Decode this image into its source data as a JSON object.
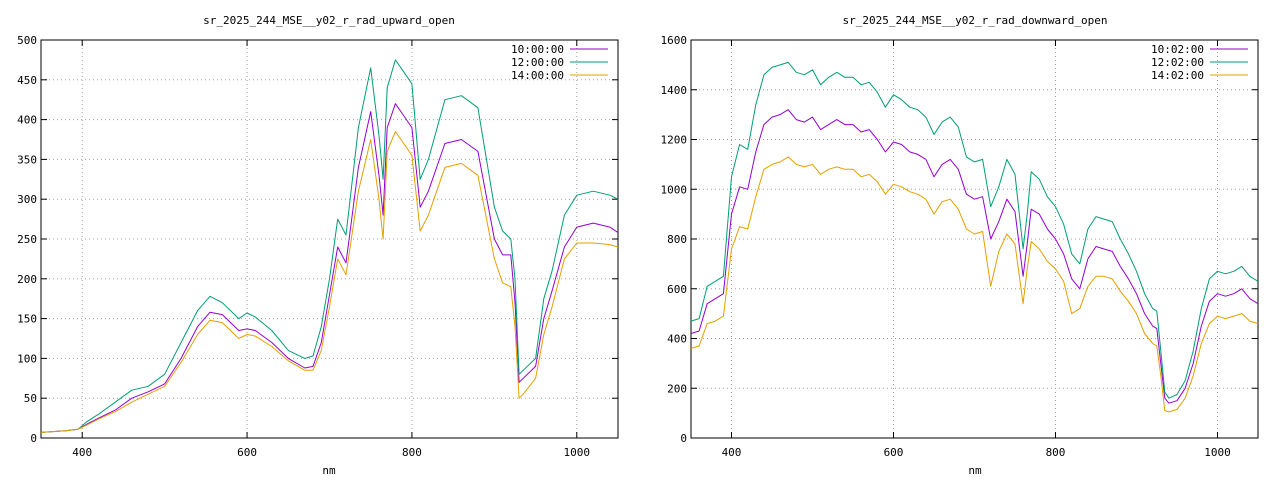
{
  "chart_data": [
    {
      "type": "line",
      "title": "sr_2025_244_MSE__y02_r_rad_upward_open",
      "xlabel": "nm",
      "ylabel": "",
      "xlim": [
        350,
        1050
      ],
      "ylim": [
        0,
        500
      ],
      "xticks": [
        400,
        600,
        800,
        1000
      ],
      "yticks": [
        0,
        50,
        100,
        150,
        200,
        250,
        300,
        350,
        400,
        450,
        500
      ],
      "grid": true,
      "legend_position": "top-right",
      "x": [
        350,
        380,
        395,
        405,
        420,
        440,
        460,
        480,
        500,
        520,
        540,
        555,
        570,
        590,
        600,
        610,
        630,
        650,
        670,
        680,
        690,
        700,
        710,
        720,
        735,
        750,
        760,
        765,
        770,
        780,
        790,
        800,
        810,
        820,
        840,
        860,
        880,
        900,
        910,
        920,
        925,
        930,
        935,
        950,
        960,
        970,
        985,
        1000,
        1020,
        1040,
        1050
      ],
      "series": [
        {
          "name": "10:00:00",
          "color": "#9400d3",
          "values": [
            7,
            9,
            11,
            17,
            25,
            35,
            50,
            58,
            68,
            100,
            140,
            158,
            155,
            135,
            137,
            135,
            120,
            100,
            88,
            90,
            120,
            180,
            240,
            220,
            340,
            410,
            330,
            280,
            390,
            420,
            405,
            390,
            290,
            310,
            370,
            375,
            360,
            250,
            230,
            230,
            170,
            70,
            75,
            90,
            150,
            185,
            240,
            265,
            270,
            265,
            258
          ]
        },
        {
          "name": "12:00:00",
          "color": "#009e73",
          "values": [
            7,
            9,
            11,
            20,
            30,
            45,
            60,
            65,
            80,
            120,
            160,
            178,
            170,
            150,
            157,
            152,
            135,
            110,
            100,
            103,
            140,
            200,
            275,
            255,
            390,
            465,
            380,
            325,
            440,
            475,
            460,
            445,
            325,
            350,
            425,
            430,
            415,
            290,
            260,
            250,
            200,
            80,
            85,
            100,
            175,
            210,
            280,
            305,
            310,
            305,
            300
          ]
        },
        {
          "name": "14:00:00",
          "color": "#e69f00",
          "values": [
            7,
            9,
            11,
            16,
            24,
            33,
            45,
            55,
            65,
            95,
            130,
            148,
            145,
            125,
            130,
            128,
            115,
            97,
            85,
            85,
            110,
            165,
            225,
            205,
            310,
            375,
            300,
            250,
            360,
            385,
            370,
            355,
            260,
            280,
            340,
            345,
            330,
            225,
            195,
            190,
            140,
            50,
            55,
            75,
            130,
            165,
            225,
            245,
            245,
            243,
            240
          ]
        }
      ]
    },
    {
      "type": "line",
      "title": "sr_2025_244_MSE__y02_r_rad_downward_open",
      "xlabel": "nm",
      "ylabel": "",
      "xlim": [
        350,
        1050
      ],
      "ylim": [
        0,
        1600
      ],
      "xticks": [
        400,
        600,
        800,
        1000
      ],
      "yticks": [
        0,
        200,
        400,
        600,
        800,
        1000,
        1200,
        1400,
        1600
      ],
      "grid": true,
      "legend_position": "top-right",
      "x": [
        350,
        360,
        370,
        380,
        390,
        400,
        410,
        420,
        430,
        440,
        450,
        460,
        470,
        480,
        490,
        500,
        510,
        520,
        530,
        540,
        550,
        560,
        570,
        580,
        590,
        600,
        610,
        620,
        630,
        640,
        650,
        660,
        670,
        680,
        690,
        700,
        710,
        720,
        730,
        740,
        750,
        760,
        765,
        770,
        780,
        790,
        800,
        810,
        820,
        830,
        840,
        850,
        860,
        870,
        880,
        890,
        900,
        910,
        920,
        925,
        930,
        935,
        940,
        950,
        960,
        970,
        980,
        990,
        1000,
        1010,
        1020,
        1030,
        1040,
        1050
      ],
      "series": [
        {
          "name": "10:02:00",
          "color": "#9400d3",
          "values": [
            420,
            430,
            540,
            560,
            580,
            900,
            1010,
            1000,
            1150,
            1260,
            1290,
            1300,
            1320,
            1280,
            1270,
            1290,
            1240,
            1260,
            1280,
            1260,
            1260,
            1230,
            1240,
            1200,
            1150,
            1190,
            1180,
            1150,
            1140,
            1120,
            1050,
            1100,
            1120,
            1080,
            980,
            960,
            970,
            800,
            870,
            960,
            910,
            650,
            780,
            920,
            900,
            840,
            800,
            740,
            640,
            600,
            720,
            770,
            760,
            750,
            690,
            640,
            580,
            500,
            450,
            440,
            300,
            160,
            140,
            150,
            200,
            300,
            450,
            550,
            580,
            570,
            580,
            600,
            560,
            540
          ]
        },
        {
          "name": "12:02:00",
          "color": "#009e73",
          "values": [
            470,
            480,
            610,
            630,
            650,
            1050,
            1180,
            1160,
            1340,
            1460,
            1490,
            1500,
            1510,
            1470,
            1460,
            1480,
            1420,
            1450,
            1470,
            1450,
            1450,
            1420,
            1430,
            1390,
            1330,
            1380,
            1360,
            1330,
            1320,
            1290,
            1220,
            1270,
            1290,
            1250,
            1130,
            1110,
            1120,
            930,
            1010,
            1120,
            1060,
            760,
            900,
            1070,
            1040,
            970,
            930,
            860,
            740,
            700,
            840,
            890,
            880,
            870,
            800,
            740,
            670,
            580,
            520,
            510,
            350,
            185,
            160,
            175,
            230,
            350,
            520,
            640,
            670,
            660,
            670,
            690,
            650,
            630
          ]
        },
        {
          "name": "14:02:00",
          "color": "#e69f00",
          "values": [
            360,
            370,
            460,
            470,
            490,
            760,
            850,
            840,
            970,
            1080,
            1100,
            1110,
            1130,
            1100,
            1090,
            1100,
            1060,
            1080,
            1090,
            1080,
            1080,
            1050,
            1060,
            1030,
            980,
            1020,
            1010,
            990,
            980,
            960,
            900,
            950,
            960,
            920,
            840,
            820,
            830,
            610,
            750,
            820,
            780,
            540,
            680,
            790,
            760,
            710,
            680,
            630,
            500,
            520,
            610,
            650,
            650,
            640,
            590,
            550,
            500,
            420,
            380,
            370,
            250,
            110,
            105,
            115,
            160,
            250,
            380,
            460,
            490,
            480,
            490,
            500,
            470,
            460
          ]
        }
      ]
    }
  ]
}
